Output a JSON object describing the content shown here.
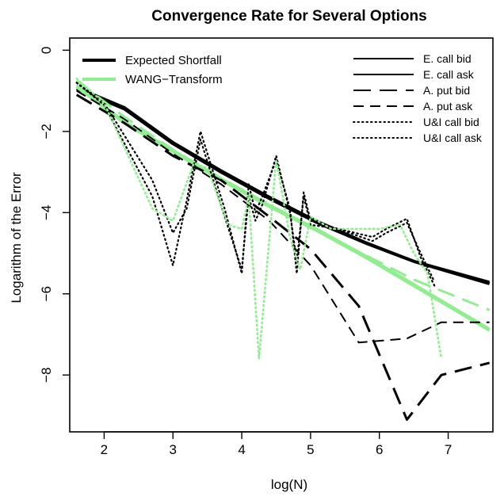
{
  "chart_data": {
    "type": "line",
    "title": "Convergence Rate for Several Options",
    "xlabel": "log(N)",
    "ylabel": "Logarithm of the Error",
    "xlim": [
      1.5,
      7.65
    ],
    "ylim": [
      -9.4,
      0.3
    ],
    "xticks": [
      2,
      3,
      4,
      5,
      6,
      7
    ],
    "yticks": [
      0,
      -2,
      -4,
      -6,
      -8
    ],
    "ytick_labels": [
      "0",
      "−2",
      "−4",
      "−6",
      "−8"
    ],
    "legend_left": [
      {
        "label": "Expected Shortfall",
        "color": "#000000"
      },
      {
        "label": "WANG−Transform",
        "color": "#90ee90"
      }
    ],
    "legend_right": [
      {
        "label": "E. call bid",
        "style": "solid"
      },
      {
        "label": "E. call ask",
        "style": "solid"
      },
      {
        "label": "A. put bid",
        "style": "longdash"
      },
      {
        "label": "A. put ask",
        "style": "dash"
      },
      {
        "label": "U&I call bid",
        "style": "dotted"
      },
      {
        "label": "U&I call ask",
        "style": "dotted"
      }
    ],
    "series": [
      {
        "key": "es_call_bid",
        "color": "#000000",
        "style": "solid",
        "width": 4,
        "x": [
          1.6,
          2.3,
          3.0,
          3.7,
          4.4,
          5.1,
          5.8,
          6.5,
          7.6
        ],
        "y": [
          -0.95,
          -1.45,
          -2.3,
          -3.0,
          -3.65,
          -4.25,
          -4.75,
          -5.2,
          -5.75
        ]
      },
      {
        "key": "es_call_ask",
        "color": "#000000",
        "style": "solid",
        "width": 2,
        "x": [
          1.6,
          2.3,
          3.0,
          3.7,
          4.4,
          5.1,
          5.8,
          6.5,
          7.6
        ],
        "y": [
          -0.9,
          -1.4,
          -2.25,
          -2.95,
          -3.6,
          -4.2,
          -4.72,
          -5.18,
          -5.7
        ]
      },
      {
        "key": "wang_call_bid",
        "color": "#90ee90",
        "style": "solid",
        "width": 4,
        "x": [
          1.6,
          2.3,
          3.0,
          3.7,
          4.4,
          5.1,
          5.8,
          6.5,
          7.6
        ],
        "y": [
          -0.9,
          -1.8,
          -2.5,
          -3.2,
          -3.85,
          -4.45,
          -5.1,
          -5.8,
          -6.9
        ]
      },
      {
        "key": "wang_call_ask",
        "color": "#90ee90",
        "style": "solid",
        "width": 2,
        "x": [
          1.6,
          2.3,
          3.0,
          3.7,
          4.4,
          5.1,
          5.8,
          6.5,
          7.6
        ],
        "y": [
          -0.85,
          -1.75,
          -2.45,
          -3.15,
          -3.8,
          -4.4,
          -5.05,
          -5.75,
          -6.85
        ]
      },
      {
        "key": "es_put_bid",
        "color": "#000000",
        "style": "longdash",
        "width": 3,
        "x": [
          1.6,
          2.3,
          3.0,
          3.7,
          4.4,
          5.0,
          5.7,
          6.4,
          6.9,
          7.6
        ],
        "y": [
          -1.1,
          -1.8,
          -2.6,
          -3.2,
          -4.1,
          -4.9,
          -6.3,
          -9.1,
          -8.0,
          -7.7
        ]
      },
      {
        "key": "es_put_ask",
        "color": "#000000",
        "style": "dash",
        "width": 2,
        "x": [
          1.6,
          2.3,
          3.0,
          3.7,
          4.4,
          5.0,
          5.7,
          6.4,
          6.9,
          7.6
        ],
        "y": [
          -1.0,
          -1.7,
          -2.55,
          -3.3,
          -4.2,
          -5.3,
          -7.2,
          -7.1,
          -6.7,
          -6.7
        ]
      },
      {
        "key": "wang_put_bid",
        "color": "#90ee90",
        "style": "longdash",
        "width": 3,
        "x": [
          1.6,
          2.3,
          3.0,
          3.7,
          4.4,
          5.1,
          5.8,
          6.5,
          7.6
        ],
        "y": [
          -0.75,
          -1.65,
          -2.45,
          -3.15,
          -3.8,
          -4.45,
          -5.05,
          -5.65,
          -6.4
        ]
      },
      {
        "key": "es_ui_bid",
        "color": "#000000",
        "style": "dotted",
        "width": 2.2,
        "x": [
          1.6,
          2.0,
          2.7,
          3.0,
          3.2,
          3.4,
          3.75,
          4.0,
          4.1,
          4.2,
          4.3,
          4.5,
          4.7,
          4.8,
          4.9,
          5.0,
          5.4,
          5.9,
          6.1,
          6.4,
          6.6,
          6.8
        ],
        "y": [
          -0.8,
          -1.3,
          -3.2,
          -4.5,
          -3.9,
          -2.2,
          -4.1,
          -5.4,
          -3.6,
          -4.2,
          -3.8,
          -2.6,
          -4.0,
          -5.2,
          -3.6,
          -4.3,
          -4.4,
          -4.7,
          -4.5,
          -4.25,
          -5.0,
          -5.7
        ]
      },
      {
        "key": "es_ui_ask",
        "color": "#000000",
        "style": "dotted",
        "width": 2.2,
        "x": [
          1.6,
          2.0,
          2.7,
          3.0,
          3.2,
          3.4,
          3.75,
          4.0,
          4.1,
          4.2,
          4.3,
          4.5,
          4.7,
          4.8,
          4.9,
          5.0,
          5.4,
          5.9,
          6.1,
          6.4,
          6.6,
          6.8
        ],
        "y": [
          -0.8,
          -1.35,
          -3.6,
          -5.3,
          -3.7,
          -2.0,
          -3.9,
          -5.5,
          -3.3,
          -4.0,
          -3.6,
          -2.7,
          -3.9,
          -5.5,
          -3.5,
          -4.2,
          -4.4,
          -4.6,
          -4.4,
          -4.15,
          -5.1,
          -5.8
        ]
      },
      {
        "key": "wang_ui_bid",
        "color": "#90ee90",
        "style": "dotted",
        "width": 2.6,
        "x": [
          1.6,
          2.0,
          2.7,
          3.0,
          3.3,
          3.5,
          3.8,
          4.0,
          4.1,
          4.25,
          4.5,
          4.7,
          4.85,
          5.0,
          5.3,
          5.6,
          6.0,
          6.3,
          6.5,
          6.7,
          6.9
        ],
        "y": [
          -0.7,
          -1.3,
          -3.9,
          -4.2,
          -2.8,
          -2.9,
          -4.3,
          -4.4,
          -3.6,
          -7.6,
          -2.7,
          -4.6,
          -5.4,
          -4.1,
          -4.4,
          -4.4,
          -4.4,
          -4.3,
          -5.0,
          -5.5,
          -7.6
        ]
      }
    ]
  }
}
